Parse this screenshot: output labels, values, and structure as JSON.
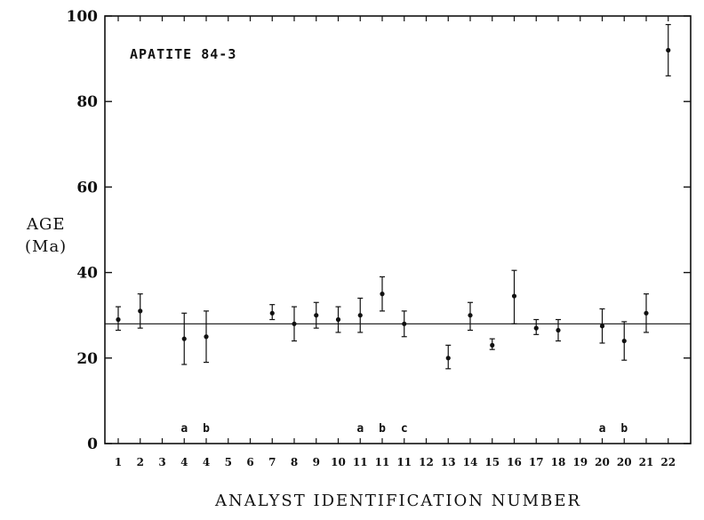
{
  "chart_data": {
    "type": "scatter",
    "title": "APATITE 84-3",
    "xlabel": "ANALYST IDENTIFICATION NUMBER",
    "ylabel": [
      "AGE",
      "(Ma)"
    ],
    "ylim": [
      0,
      100
    ],
    "y_ticks": [
      0,
      20,
      40,
      60,
      80,
      100
    ],
    "x_tick_labels": [
      "1",
      "2",
      "3",
      "4",
      "4",
      "5",
      "6",
      "7",
      "8",
      "9",
      "10",
      "11",
      "11",
      "11",
      "12",
      "13",
      "14",
      "15",
      "16",
      "17",
      "18",
      "19",
      "20",
      "20",
      "21",
      "22"
    ],
    "reference_line_age": 28,
    "grid": false,
    "points": [
      {
        "slot": 0,
        "age": 29,
        "low": 26.5,
        "high": 32
      },
      {
        "slot": 1,
        "age": 31,
        "low": 27,
        "high": 35
      },
      {
        "slot": 3,
        "age": 24.5,
        "low": 18.5,
        "high": 30.5,
        "sub": "a"
      },
      {
        "slot": 4,
        "age": 25,
        "low": 19,
        "high": 31,
        "sub": "b"
      },
      {
        "slot": 7,
        "age": 30.5,
        "low": 29,
        "high": 32.5
      },
      {
        "slot": 8,
        "age": 28,
        "low": 24,
        "high": 32
      },
      {
        "slot": 9,
        "age": 30,
        "low": 27,
        "high": 33
      },
      {
        "slot": 10,
        "age": 29,
        "low": 26,
        "high": 32
      },
      {
        "slot": 11,
        "age": 30,
        "low": 26,
        "high": 34,
        "sub": "a"
      },
      {
        "slot": 12,
        "age": 35,
        "low": 31,
        "high": 39,
        "sub": "b"
      },
      {
        "slot": 13,
        "age": 28,
        "low": 25,
        "high": 31,
        "sub": "c"
      },
      {
        "slot": 15,
        "age": 20,
        "low": 17.5,
        "high": 23
      },
      {
        "slot": 16,
        "age": 30,
        "low": 26.5,
        "high": 33
      },
      {
        "slot": 17,
        "age": 23,
        "low": 22,
        "high": 24.5
      },
      {
        "slot": 18,
        "age": 34.5,
        "low": 28,
        "high": 40.5
      },
      {
        "slot": 19,
        "age": 27,
        "low": 25.5,
        "high": 29
      },
      {
        "slot": 20,
        "age": 26.5,
        "low": 24,
        "high": 29
      },
      {
        "slot": 22,
        "age": 27.5,
        "low": 23.5,
        "high": 31.5,
        "sub": "a"
      },
      {
        "slot": 23,
        "age": 24,
        "low": 19.5,
        "high": 28.5,
        "sub": "b"
      },
      {
        "slot": 24,
        "age": 30.5,
        "low": 26,
        "high": 35
      },
      {
        "slot": 25,
        "age": 92,
        "low": 86,
        "high": 98
      }
    ]
  }
}
